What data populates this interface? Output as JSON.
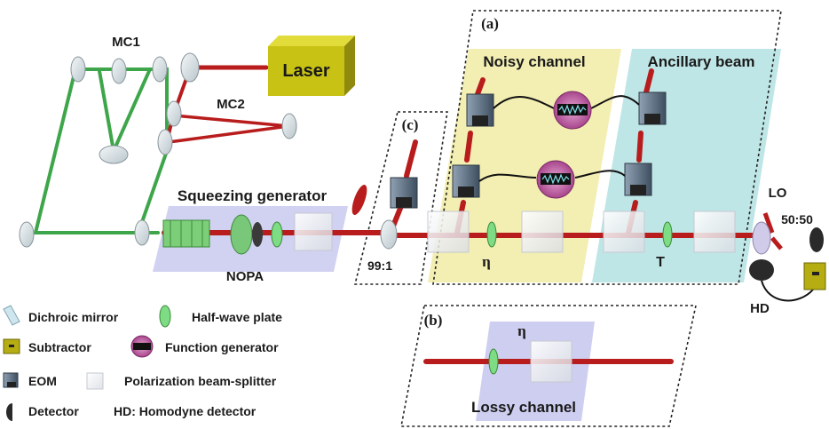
{
  "title": "",
  "components": {
    "laser": "Laser",
    "mc1": "MC1",
    "mc2": "MC2",
    "squeezing_generator": "Squeezing generator",
    "nopa": "NOPA",
    "splitter_99_1": "99:1",
    "lo": "LO",
    "splitter_50_50": "50:50",
    "hd": "HD"
  },
  "panels": {
    "a": {
      "tag": "(a)",
      "noisy_channel": "Noisy channel",
      "ancillary_beam": "Ancillary beam",
      "eta": "η",
      "t": "T"
    },
    "b": {
      "tag": "(b)",
      "eta": "η",
      "lossy_channel": "Lossy channel"
    },
    "c": {
      "tag": "(c)"
    }
  },
  "legend": [
    {
      "icon": "dichroic-mirror-icon",
      "label": "Dichroic mirror"
    },
    {
      "icon": "half-wave-plate-icon",
      "label": "Half-wave plate"
    },
    {
      "icon": "subtractor-icon",
      "label": "Subtractor"
    },
    {
      "icon": "function-generator-icon",
      "label": "Function generator"
    },
    {
      "icon": "eom-icon",
      "label": "EOM"
    },
    {
      "icon": "polarization-beam-splitter-icon",
      "label": "Polarization beam-splitter"
    },
    {
      "icon": "detector-icon",
      "label": "Detector"
    },
    {
      "icon": "homodyne-detector-note",
      "label": "HD: Homodyne detector"
    }
  ],
  "colors": {
    "beam_red": "#b81c1c",
    "beam_green": "#3ea64a",
    "laser_yellow": "#c8c214",
    "noisy_panel": "#f3eeb2",
    "ancillary_panel": "#bfe6e6",
    "squeezer_panel": "#c9c9ee",
    "eom_blue": "#5b6f84",
    "function_generator_purple": "#c46aa8"
  }
}
